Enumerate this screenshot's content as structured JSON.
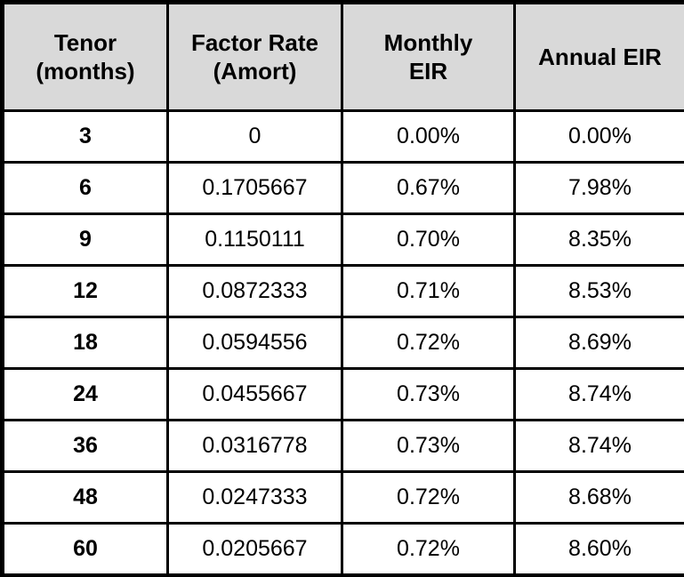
{
  "colors": {
    "header_bg": "#d9d9d9",
    "cell_bg": "#ffffff",
    "border": "#000000",
    "text": "#000000"
  },
  "table": {
    "headers": [
      {
        "name": "tenor",
        "lines": [
          "Tenor",
          "(months)"
        ]
      },
      {
        "name": "factor-rate",
        "lines": [
          "Factor Rate",
          "(Amort)"
        ]
      },
      {
        "name": "monthly-eir",
        "lines": [
          "Monthly",
          "EIR"
        ]
      },
      {
        "name": "annual-eir",
        "lines": [
          "Annual EIR"
        ]
      }
    ],
    "rows": [
      [
        "3",
        "0",
        "0.00%",
        "0.00%"
      ],
      [
        "6",
        "0.1705667",
        "0.67%",
        "7.98%"
      ],
      [
        "9",
        "0.1150111",
        "0.70%",
        "8.35%"
      ],
      [
        "12",
        "0.0872333",
        "0.71%",
        "8.53%"
      ],
      [
        "18",
        "0.0594556",
        "0.72%",
        "8.69%"
      ],
      [
        "24",
        "0.0455667",
        "0.73%",
        "8.74%"
      ],
      [
        "36",
        "0.0316778",
        "0.73%",
        "8.74%"
      ],
      [
        "48",
        "0.0247333",
        "0.72%",
        "8.68%"
      ],
      [
        "60",
        "0.0205667",
        "0.72%",
        "8.60%"
      ]
    ]
  },
  "chart_data": {
    "type": "table",
    "title": "",
    "columns": [
      "Tenor (months)",
      "Factor Rate (Amort)",
      "Monthly EIR",
      "Annual EIR"
    ],
    "tenor_months": [
      3,
      6,
      9,
      12,
      18,
      24,
      36,
      48,
      60
    ],
    "factor_rate_amort": [
      0,
      0.1705667,
      0.1150111,
      0.0872333,
      0.0594556,
      0.0455667,
      0.0316778,
      0.0247333,
      0.0205667
    ],
    "monthly_eir_pct": [
      0.0,
      0.67,
      0.7,
      0.71,
      0.72,
      0.73,
      0.73,
      0.72,
      0.72
    ],
    "annual_eir_pct": [
      0.0,
      7.98,
      8.35,
      8.53,
      8.69,
      8.74,
      8.74,
      8.68,
      8.6
    ]
  }
}
